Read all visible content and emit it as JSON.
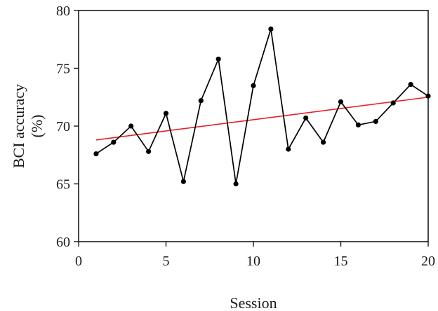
{
  "chart_data": {
    "type": "line",
    "xlabel": "Session",
    "ylabel": [
      "BCI accuracy",
      "(%)"
    ],
    "xlim": [
      0,
      20
    ],
    "ylim": [
      60,
      80
    ],
    "xticks": [
      0,
      5,
      10,
      15,
      20
    ],
    "yticks": [
      60,
      65,
      70,
      75,
      80
    ],
    "grid": false,
    "series": [
      {
        "kind": "line-with-markers",
        "color": "#000000",
        "x": [
          1,
          2,
          3,
          4,
          5,
          6,
          7,
          8,
          9,
          10,
          11,
          12,
          13,
          14,
          15,
          16,
          17,
          18,
          19,
          20
        ],
        "y": [
          67.6,
          68.6,
          70.0,
          67.8,
          71.1,
          65.2,
          72.2,
          75.8,
          65.0,
          73.5,
          78.4,
          68.0,
          70.7,
          68.6,
          72.1,
          70.1,
          70.4,
          72.0,
          73.6,
          72.6
        ]
      },
      {
        "kind": "trend-line",
        "color": "#e8202a",
        "x": [
          1,
          20
        ],
        "y": [
          68.8,
          72.5
        ]
      }
    ]
  }
}
